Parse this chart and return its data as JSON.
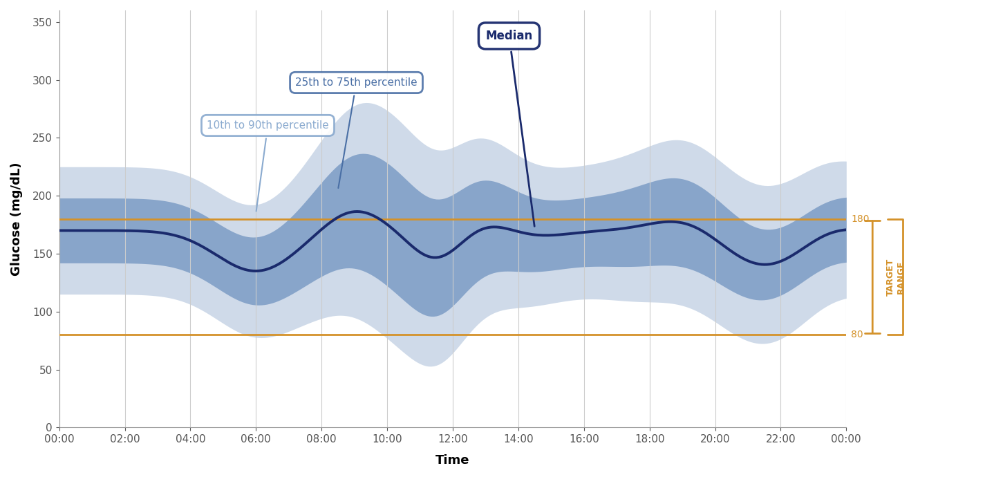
{
  "title": "",
  "xlabel": "Time",
  "ylabel": "Glucose (mg/dL)",
  "ylim": [
    0,
    360
  ],
  "yticks": [
    0,
    50,
    100,
    150,
    200,
    250,
    300,
    350
  ],
  "target_low": 80,
  "target_high": 180,
  "target_color": "#D4922A",
  "median_color": "#1a2a6c",
  "band_10_90_color": "#a8bdd8",
  "band_25_75_color": "#6b8fbd",
  "time_labels": [
    "00:00",
    "02:00",
    "04:00",
    "06:00",
    "08:00",
    "10:00",
    "12:00",
    "14:00",
    "16:00",
    "18:00",
    "20:00",
    "22:00",
    "00:00"
  ],
  "background_color": "#ffffff",
  "grid_color": "#cccccc",
  "annotation_10_90_text": "10th to 90th percentile",
  "annotation_25_75_text": "25th to 75th percentile",
  "annotation_median_text": "Median",
  "annotation_10_90_color": "#8aaacf",
  "annotation_25_75_color": "#4a6fa5",
  "annotation_median_color": "#1a2a6c"
}
